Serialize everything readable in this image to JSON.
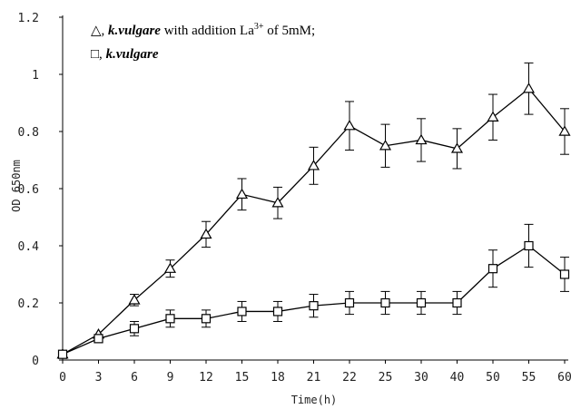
{
  "chart_data": {
    "type": "line",
    "categories": [
      "0",
      "3",
      "6",
      "9",
      "12",
      "15",
      "18",
      "21",
      "22",
      "25",
      "30",
      "40",
      "50",
      "55",
      "60"
    ],
    "xlabel": "Time(h)",
    "ylabel": "OD 650nm",
    "ylim": [
      0,
      1.2
    ],
    "yticks": [
      "0",
      "0.2",
      "0.4",
      "0.6",
      "0.8",
      "1",
      "1.2"
    ],
    "legend_position": "top-left",
    "series": [
      {
        "marker": "triangle",
        "legend_parts": [
          "△, ",
          "k.vulgare",
          " with addition La",
          "3+",
          " of 5mM;"
        ],
        "values": [
          0.02,
          0.09,
          0.21,
          0.32,
          0.44,
          0.58,
          0.55,
          0.68,
          0.82,
          0.75,
          0.77,
          0.74,
          0.85,
          0.95,
          0.8
        ],
        "errors": [
          0.0,
          0.0,
          0.02,
          0.03,
          0.045,
          0.055,
          0.055,
          0.065,
          0.085,
          0.075,
          0.075,
          0.07,
          0.08,
          0.09,
          0.08
        ]
      },
      {
        "marker": "square",
        "legend_parts": [
          "□, ",
          "k.vulgare"
        ],
        "values": [
          0.02,
          0.075,
          0.11,
          0.145,
          0.145,
          0.17,
          0.17,
          0.19,
          0.2,
          0.2,
          0.2,
          0.2,
          0.32,
          0.4,
          0.3
        ],
        "errors": [
          0.0,
          0.0,
          0.025,
          0.03,
          0.03,
          0.035,
          0.035,
          0.04,
          0.04,
          0.04,
          0.04,
          0.04,
          0.065,
          0.075,
          0.06
        ]
      }
    ]
  }
}
